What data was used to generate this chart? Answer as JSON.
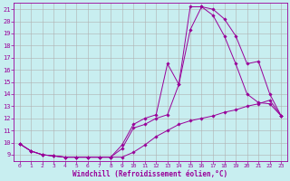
{
  "xlabel": "Windchill (Refroidissement éolien,°C)",
  "bg_color": "#c8eef0",
  "line_color": "#990099",
  "grid_color": "#b0b0b0",
  "xlim": [
    -0.5,
    23.5
  ],
  "ylim": [
    8.5,
    21.5
  ],
  "yticks": [
    9,
    10,
    11,
    12,
    13,
    14,
    15,
    16,
    17,
    18,
    19,
    20,
    21
  ],
  "xticks": [
    0,
    1,
    2,
    3,
    4,
    5,
    6,
    7,
    8,
    9,
    10,
    11,
    12,
    13,
    14,
    15,
    16,
    17,
    18,
    19,
    20,
    21,
    22,
    23
  ],
  "line1_x": [
    0,
    1,
    2,
    3,
    4,
    5,
    6,
    7,
    8,
    9,
    10,
    11,
    12,
    13,
    14,
    15,
    16,
    17,
    18,
    19,
    20,
    21,
    22,
    23
  ],
  "line1_y": [
    9.9,
    9.3,
    9.0,
    8.9,
    8.8,
    8.8,
    8.8,
    8.8,
    8.8,
    8.8,
    9.2,
    9.8,
    10.5,
    11.0,
    11.5,
    11.8,
    12.0,
    12.2,
    12.5,
    12.7,
    13.0,
    13.2,
    13.5,
    12.2
  ],
  "line2_x": [
    0,
    1,
    2,
    3,
    4,
    5,
    6,
    7,
    8,
    9,
    10,
    11,
    12,
    13,
    14,
    15,
    16,
    17,
    18,
    19,
    20,
    21,
    22,
    23
  ],
  "line2_y": [
    9.9,
    9.3,
    9.0,
    8.9,
    8.8,
    8.8,
    8.8,
    8.8,
    8.8,
    9.5,
    11.2,
    11.5,
    12.0,
    12.3,
    14.8,
    19.3,
    21.2,
    21.0,
    20.2,
    18.8,
    16.5,
    16.7,
    14.0,
    12.2
  ],
  "line3_x": [
    0,
    1,
    2,
    3,
    4,
    5,
    6,
    7,
    8,
    9,
    10,
    11,
    12,
    13,
    14,
    15,
    16,
    17,
    18,
    19,
    20,
    21,
    22,
    23
  ],
  "line3_y": [
    9.9,
    9.3,
    9.0,
    8.9,
    8.8,
    8.8,
    8.8,
    8.8,
    8.8,
    9.8,
    11.5,
    12.0,
    12.3,
    16.5,
    14.8,
    21.2,
    21.2,
    20.5,
    18.8,
    16.5,
    14.0,
    13.3,
    13.2,
    12.2
  ]
}
